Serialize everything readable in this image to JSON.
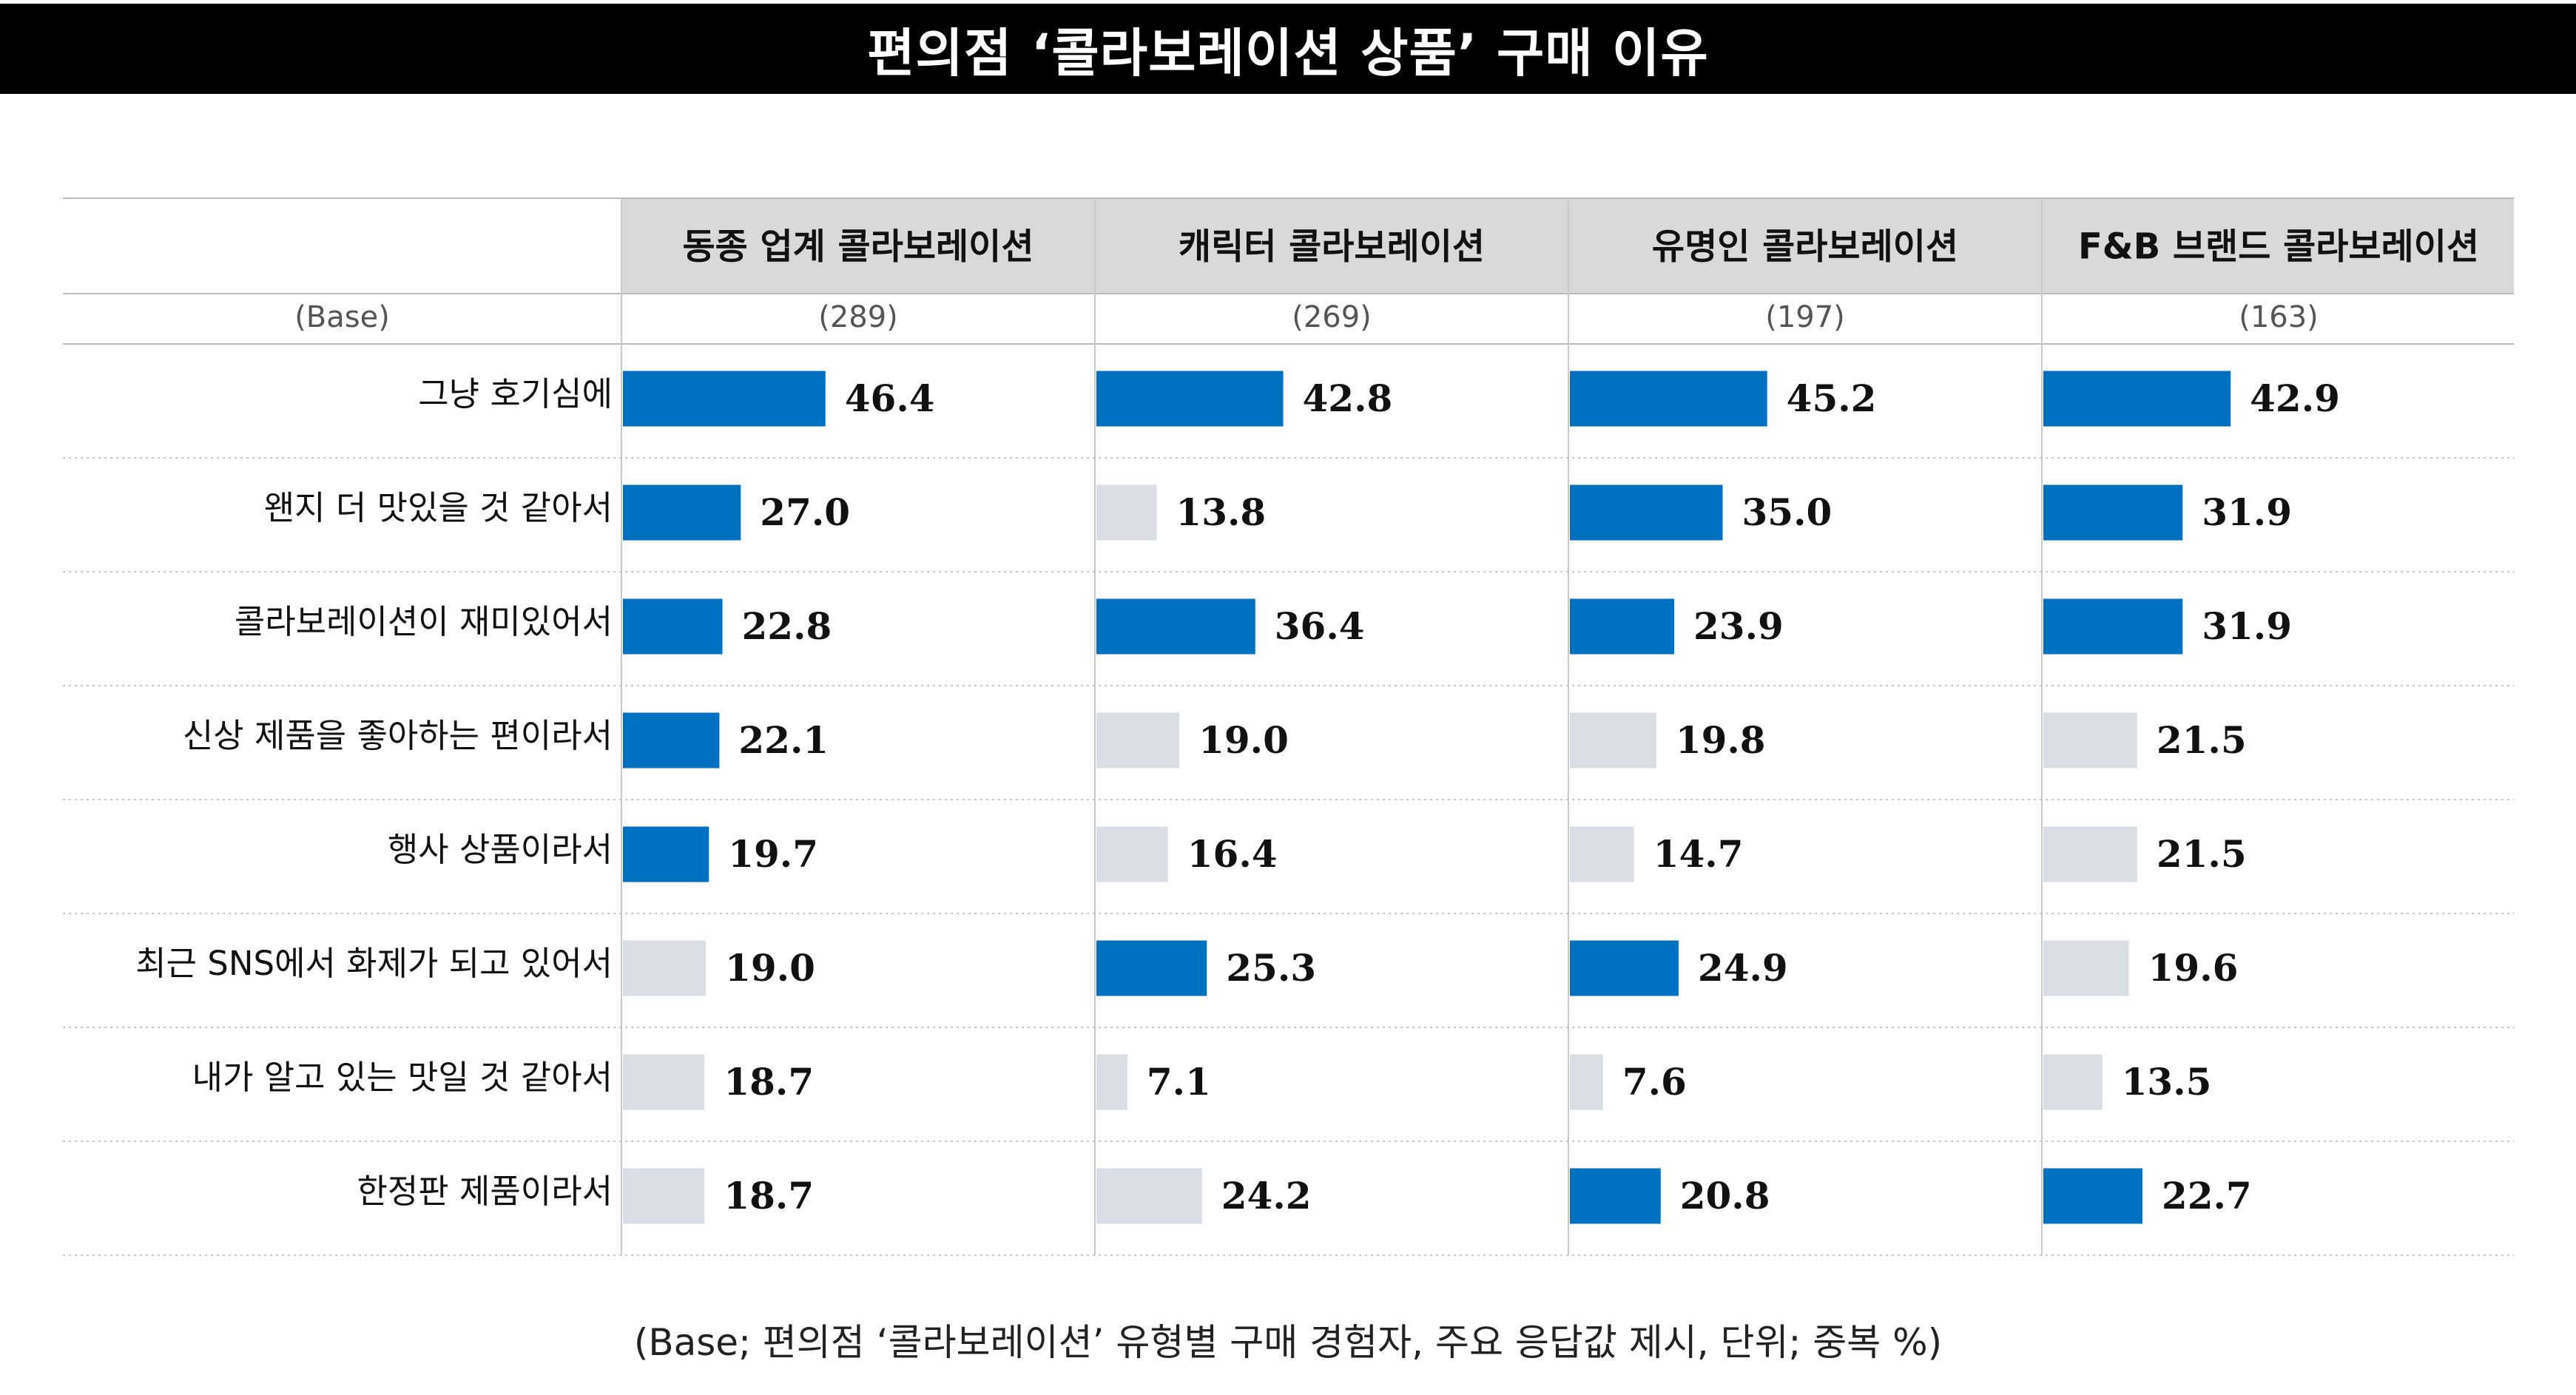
{
  "title": "편의점 ‘콜라보레이션 상품’ 구매 이유",
  "footnote": "(Base; 편의점 ‘콜라보레이션’ 유형별 구매 경험자, 주요 응답값 제시, 단위; 중복 %)",
  "colors": {
    "highlight": "#0070C0",
    "muted": "#D9DDE4",
    "header_bg": "#D9D9D9",
    "title_bg": "#000000"
  },
  "chart_data": {
    "type": "bar",
    "orientation": "horizontal",
    "title": "편의점 ‘콜라보레이션 상품’ 구매 이유",
    "base_label": "(Base)",
    "categories": [
      "그냥 호기심에",
      "왠지 더 맛있을 것 같아서",
      "콜라보레이션이 재미있어서",
      "신상 제품을 좋아하는 편이라서",
      "행사 상품이라서",
      "최근 SNS에서 화제가 되고 있어서",
      "내가 알고 있는 맛일 것 같아서",
      "한정판 제품이라서"
    ],
    "series": [
      {
        "name": "동종 업계 콜라보레이션",
        "base": "(289)",
        "values": [
          46.4,
          27.0,
          22.8,
          22.1,
          19.7,
          19.0,
          18.7,
          18.7
        ],
        "highlighted": [
          true,
          true,
          true,
          true,
          true,
          false,
          false,
          false
        ]
      },
      {
        "name": "캐릭터 콜라보레이션",
        "base": "(269)",
        "values": [
          42.8,
          13.8,
          36.4,
          19.0,
          16.4,
          25.3,
          7.1,
          24.2
        ],
        "highlighted": [
          true,
          false,
          true,
          false,
          false,
          true,
          false,
          false
        ]
      },
      {
        "name": "유명인 콜라보레이션",
        "base": "(197)",
        "values": [
          45.2,
          35.0,
          23.9,
          19.8,
          14.7,
          24.9,
          7.6,
          20.8
        ],
        "highlighted": [
          true,
          true,
          true,
          false,
          false,
          true,
          false,
          true
        ]
      },
      {
        "name": "F&B 브랜드 콜라보레이션",
        "base": "(163)",
        "values": [
          42.9,
          31.9,
          31.9,
          21.5,
          21.5,
          19.6,
          13.5,
          22.7
        ],
        "highlighted": [
          true,
          true,
          true,
          false,
          false,
          false,
          false,
          true
        ]
      }
    ],
    "value_unit": "%",
    "xlim": [
      0,
      100
    ],
    "grid": false,
    "legend": "none"
  }
}
